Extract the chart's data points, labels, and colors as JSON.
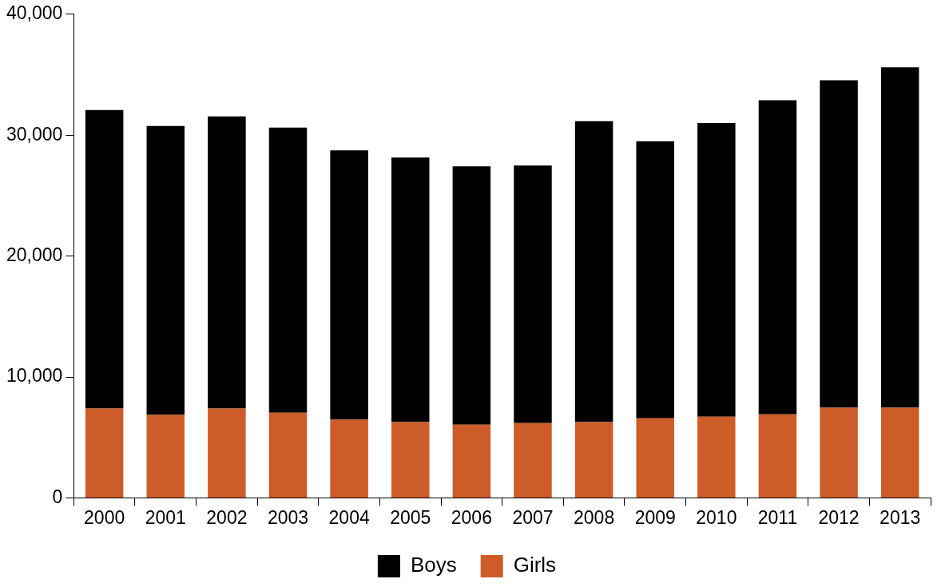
{
  "chart_data": {
    "type": "bar",
    "stacked": true,
    "categories": [
      "2000",
      "2001",
      "2002",
      "2003",
      "2004",
      "2005",
      "2006",
      "2007",
      "2008",
      "2009",
      "2010",
      "2011",
      "2012",
      "2013"
    ],
    "series": [
      {
        "name": "Girls",
        "color": "#cd5c29",
        "values": [
          7390,
          6860,
          7390,
          7050,
          6460,
          6260,
          6060,
          6190,
          6260,
          6590,
          6720,
          6920,
          7450,
          7450
        ]
      },
      {
        "name": "Boys",
        "color": "#000000",
        "values": [
          24690,
          23890,
          24160,
          23570,
          22290,
          21890,
          21360,
          21300,
          24890,
          22890,
          24290,
          25960,
          27090,
          28160
        ]
      }
    ],
    "ylim": [
      0,
      40000
    ],
    "yticks": [
      0,
      {
        "value": 10000,
        "label": "10,000"
      },
      {
        "value": 20000,
        "label": "20,000"
      },
      {
        "value": 30000,
        "label": "30,000"
      },
      {
        "value": 40000,
        "label": "40,000"
      }
    ],
    "legend": "bottom"
  }
}
